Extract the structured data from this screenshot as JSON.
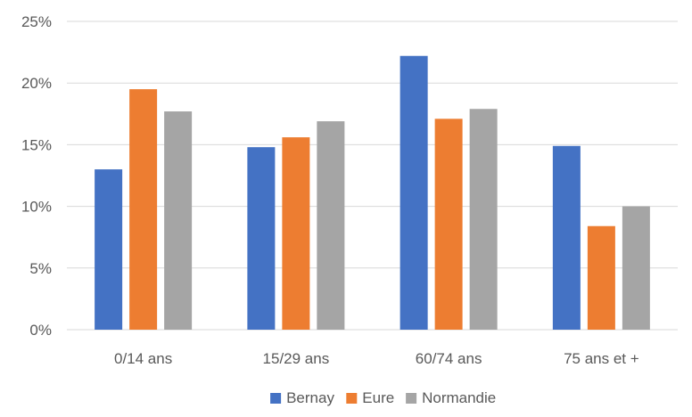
{
  "chart_data": {
    "type": "bar",
    "title": "",
    "xlabel": "",
    "ylabel": "",
    "ylim": [
      0,
      25
    ],
    "yticks": [
      0,
      5,
      10,
      15,
      20,
      25
    ],
    "ytick_labels": [
      "0%",
      "5%",
      "10%",
      "15%",
      "20%",
      "25%"
    ],
    "categories": [
      "0/14 ans",
      "15/29 ans",
      "60/74 ans",
      "75 ans et +"
    ],
    "series": [
      {
        "name": "Bernay",
        "color": "#4472c4",
        "values": [
          13.0,
          14.8,
          22.2,
          14.9
        ]
      },
      {
        "name": "Eure",
        "color": "#ed7d31",
        "values": [
          19.5,
          15.6,
          17.1,
          8.4
        ]
      },
      {
        "name": "Normandie",
        "color": "#a5a5a5",
        "values": [
          17.7,
          16.9,
          17.9,
          10.0
        ]
      }
    ],
    "grid": true,
    "gridline_color": "#d9d9d9",
    "legend_position": "bottom"
  }
}
